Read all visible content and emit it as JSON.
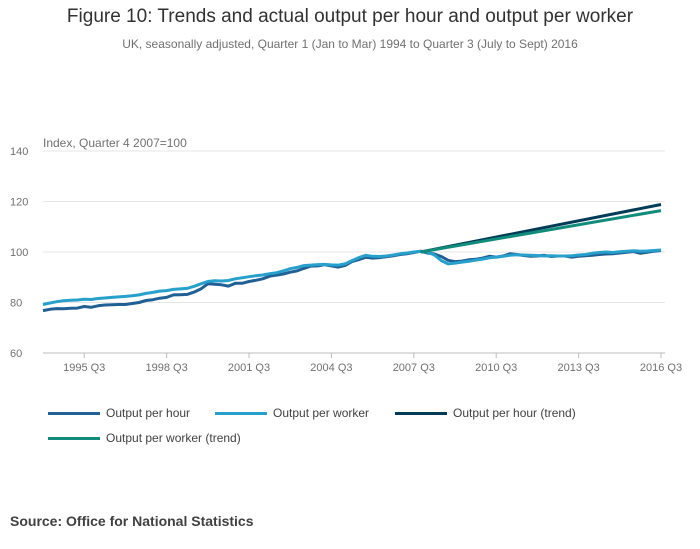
{
  "header": {
    "title": "Figure 10: Trends and actual output per hour and output per worker",
    "subtitle": "UK, seasonally adjusted, Quarter 1 (Jan to Mar) 1994 to Quarter 3 (July to Sept) 2016"
  },
  "source": "Source: Office for National Statistics",
  "chart_data": {
    "type": "line",
    "title": "Figure 10: Trends and actual output per hour and output per worker",
    "subtitle": "UK, seasonally adjusted, Quarter 1 (Jan to Mar) 1994 to Quarter 3 (July to Sept) 2016",
    "ylabel": "Index, Quarter 4 2007=100",
    "xlabel": "",
    "ylim": [
      60,
      140
    ],
    "yticks": [
      60,
      80,
      100,
      120,
      140
    ],
    "grid": true,
    "legend_position": "bottom",
    "x_start_year": 1994,
    "x_start_quarter": 1,
    "x_tick_labels": [
      {
        "label": "1995 Q3",
        "index": 6
      },
      {
        "label": "1998 Q3",
        "index": 18
      },
      {
        "label": "2001 Q3",
        "index": 30
      },
      {
        "label": "2004 Q3",
        "index": 42
      },
      {
        "label": "2007 Q3",
        "index": 54
      },
      {
        "label": "2010 Q3",
        "index": 66
      },
      {
        "label": "2013 Q3",
        "index": 78
      },
      {
        "label": "2016 Q3",
        "index": 90
      }
    ],
    "series": [
      {
        "name": "Output per hour",
        "color": "#206095",
        "start_index": 0,
        "values": [
          76.8,
          77.3,
          77.6,
          77.5,
          77.7,
          77.8,
          78.4,
          78.1,
          78.7,
          79.0,
          79.1,
          79.2,
          79.2,
          79.6,
          80.0,
          80.8,
          81.1,
          81.7,
          82.0,
          83.0,
          83.1,
          83.2,
          84.1,
          85.4,
          87.4,
          87.2,
          87.0,
          86.5,
          87.6,
          87.6,
          88.3,
          88.8,
          89.4,
          90.4,
          90.8,
          91.3,
          92.0,
          92.5,
          93.5,
          94.4,
          94.5,
          95.0,
          94.5,
          94.0,
          94.7,
          96.2,
          97.0,
          97.9,
          97.6,
          97.8,
          98.1,
          98.5,
          99.0,
          99.3,
          99.8,
          100.3,
          99.6,
          99.2,
          98.2,
          96.7,
          96.2,
          96.4,
          96.9,
          97.1,
          97.6,
          98.3,
          98.0,
          98.4,
          99.3,
          99.0,
          98.6,
          98.3,
          98.4,
          98.7,
          98.2,
          98.4,
          98.4,
          98.0,
          98.3,
          98.5,
          98.7,
          99.0,
          99.2,
          99.3,
          99.6,
          99.9,
          100.2,
          99.5,
          99.9,
          100.3,
          100.6
        ]
      },
      {
        "name": "Output per worker",
        "color": "#27a0cc",
        "start_index": 0,
        "values": [
          79.2,
          79.8,
          80.3,
          80.7,
          80.9,
          81.0,
          81.3,
          81.2,
          81.6,
          81.8,
          82.0,
          82.2,
          82.4,
          82.7,
          83.0,
          83.6,
          84.0,
          84.5,
          84.7,
          85.2,
          85.4,
          85.6,
          86.4,
          87.4,
          88.3,
          88.6,
          88.5,
          88.7,
          89.4,
          89.8,
          90.2,
          90.6,
          90.9,
          91.4,
          91.8,
          92.5,
          93.4,
          93.9,
          94.6,
          94.8,
          95.0,
          95.1,
          94.9,
          94.8,
          95.3,
          96.6,
          97.8,
          98.7,
          98.3,
          98.2,
          98.4,
          98.8,
          99.3,
          99.6,
          100.0,
          100.3,
          100.0,
          98.8,
          96.6,
          95.3,
          95.6,
          96.0,
          96.3,
          96.8,
          97.2,
          97.7,
          98.0,
          98.3,
          98.7,
          98.9,
          98.8,
          98.7,
          98.6,
          98.4,
          98.5,
          98.4,
          98.4,
          98.5,
          98.8,
          99.0,
          99.5,
          99.8,
          100.0,
          99.8,
          100.1,
          100.3,
          100.5,
          100.3,
          100.4,
          100.6,
          100.8
        ]
      },
      {
        "name": "Output per hour (trend)",
        "color": "#003c57",
        "start_index": 55,
        "values": [
          100.0,
          118.8
        ]
      },
      {
        "name": "Output per worker (trend)",
        "color": "#118c7b",
        "start_index": 55,
        "values": [
          100.0,
          116.4
        ]
      }
    ]
  }
}
